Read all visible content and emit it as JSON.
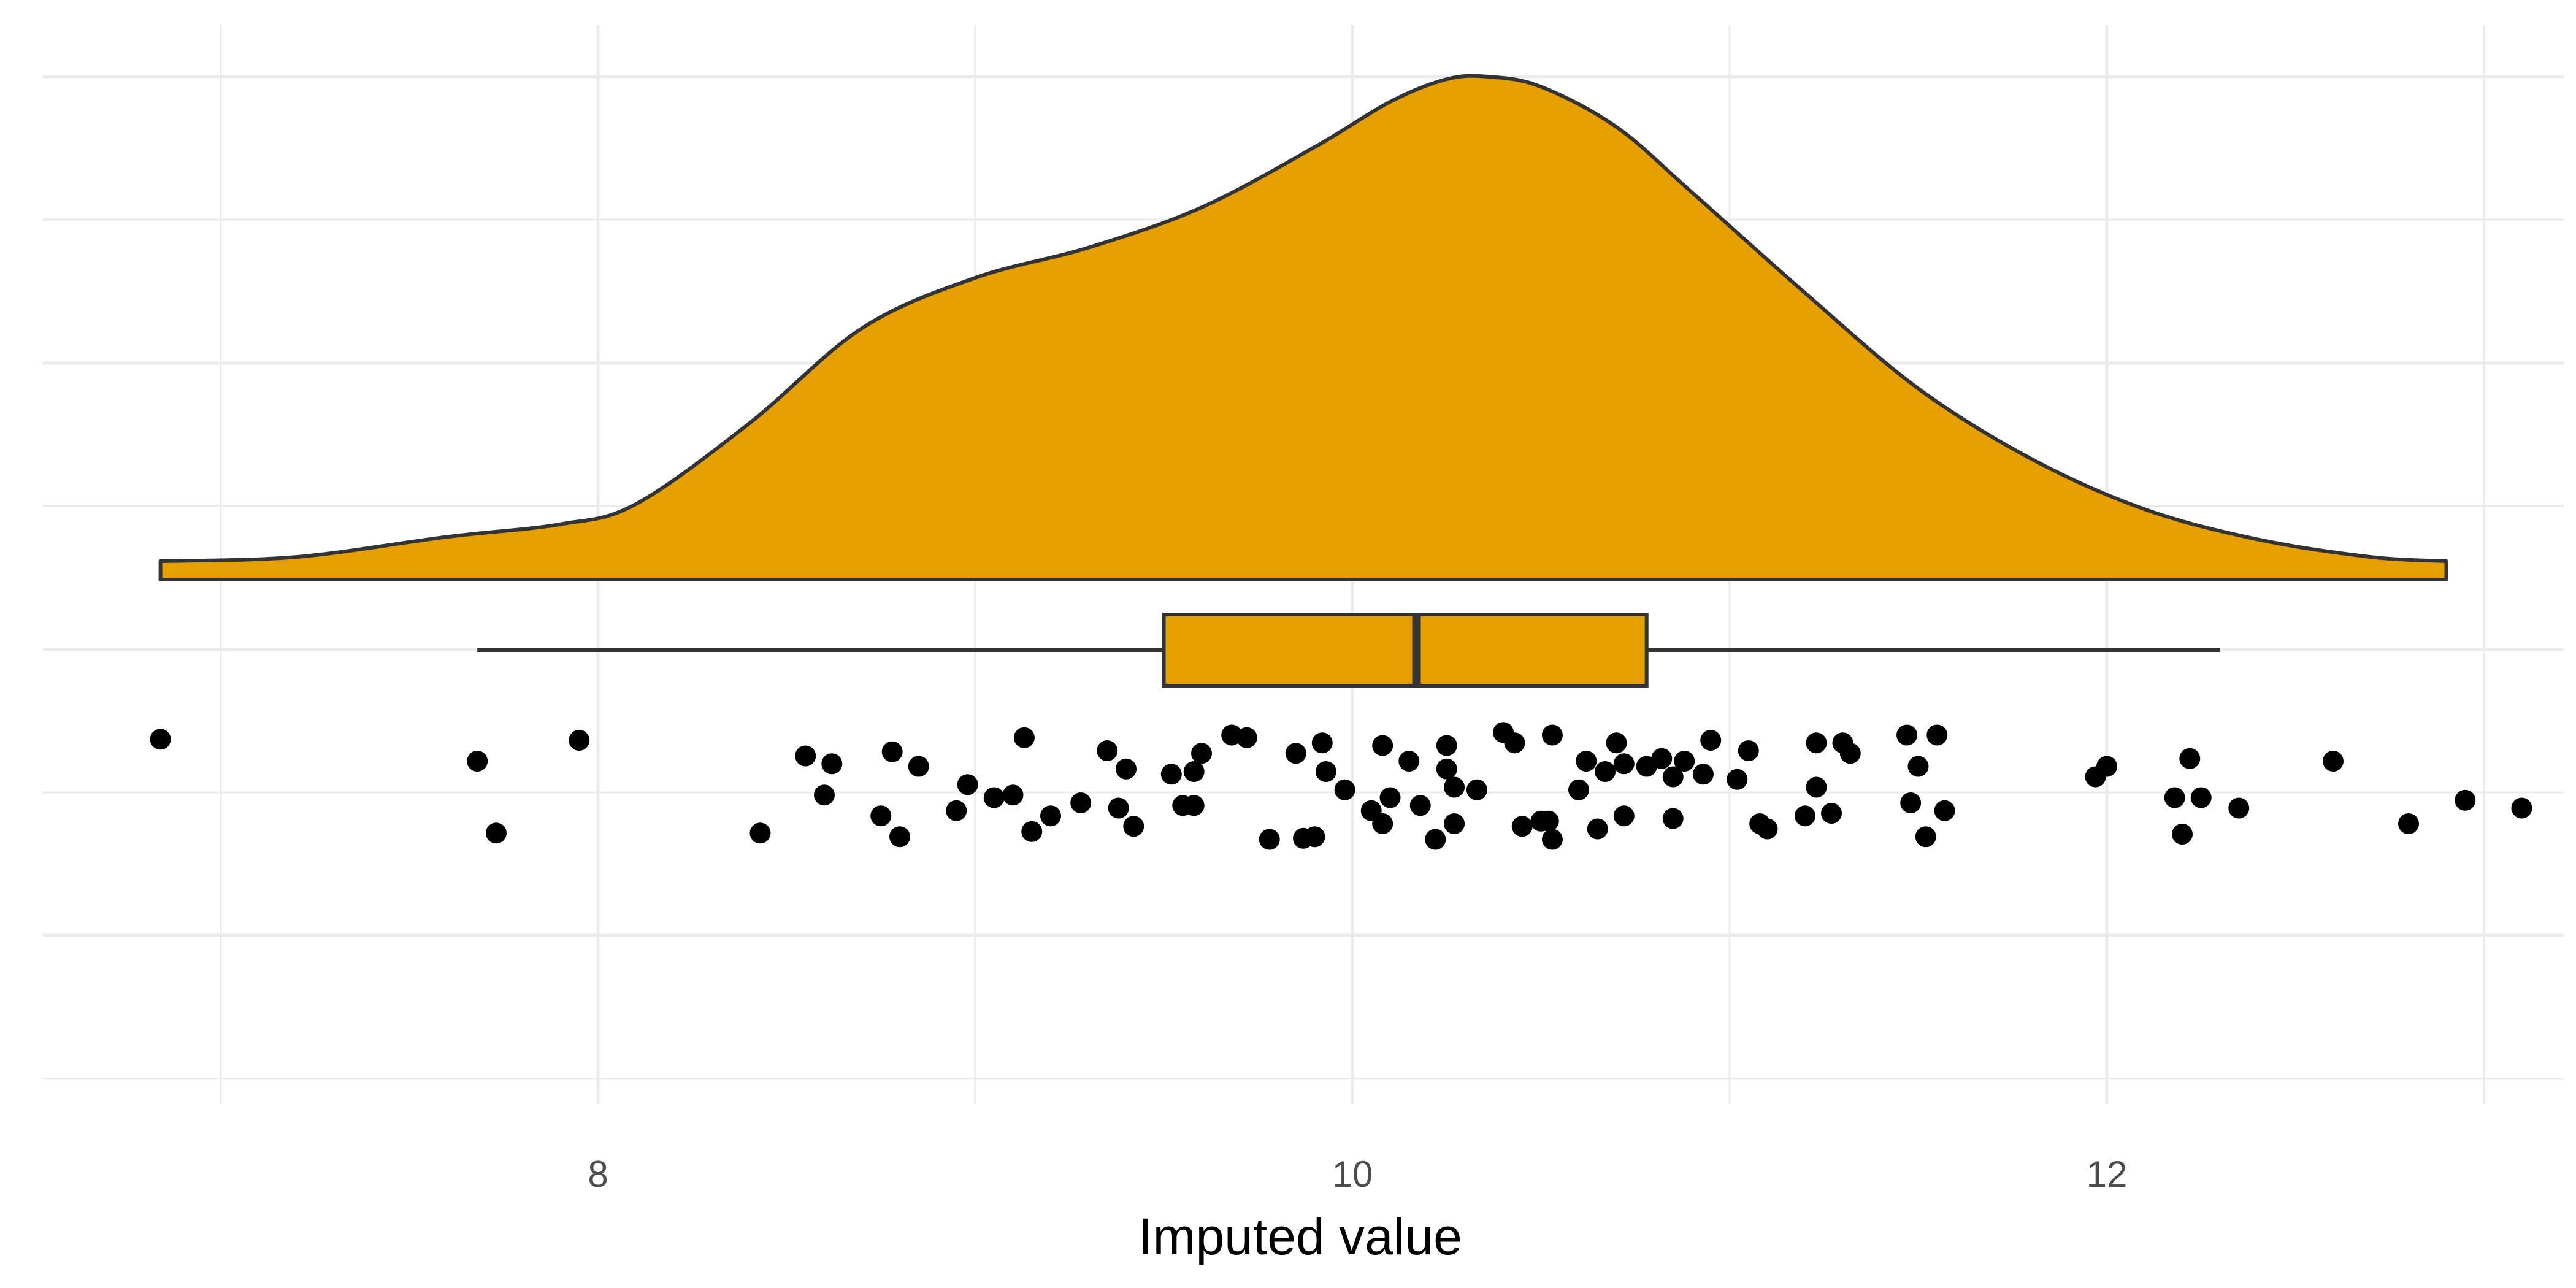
{
  "chart_data": {
    "type": "raincloud",
    "xlabel": "Imputed value",
    "ylabel": "",
    "title": "",
    "xlim": [
      6.75,
      13.25
    ],
    "x_ticks": [
      8,
      10,
      12
    ],
    "grid": "on",
    "colors": {
      "fill": "#E69F00",
      "outline": "#333333",
      "points": "#000000",
      "grid": "#EBEBEB"
    },
    "density": {
      "x": [
        6.84,
        7.2,
        7.6,
        7.9,
        8.1,
        8.4,
        8.7,
        9.0,
        9.3,
        9.6,
        9.9,
        10.1,
        10.25,
        10.36,
        10.5,
        10.7,
        10.9,
        11.2,
        11.5,
        11.8,
        12.1,
        12.4,
        12.7,
        12.9
      ],
      "density": [
        0.03,
        0.045,
        0.085,
        0.11,
        0.15,
        0.31,
        0.5,
        0.6,
        0.66,
        0.74,
        0.86,
        0.95,
        0.995,
        1.0,
        0.98,
        0.9,
        0.77,
        0.57,
        0.38,
        0.24,
        0.14,
        0.08,
        0.045,
        0.035
      ]
    },
    "boxplot": {
      "whisker_low": 7.68,
      "q1": 9.5,
      "median": 10.17,
      "q3": 10.78,
      "whisker_high": 12.3
    },
    "points": [
      {
        "x": 6.84,
        "y": 1.02
      },
      {
        "x": 7.68,
        "y": 0.6
      },
      {
        "x": 7.73,
        "y": -0.78
      },
      {
        "x": 7.95,
        "y": 1.0
      },
      {
        "x": 8.43,
        "y": -0.78
      },
      {
        "x": 8.55,
        "y": 0.7
      },
      {
        "x": 8.62,
        "y": 0.55
      },
      {
        "x": 8.6,
        "y": -0.05
      },
      {
        "x": 8.75,
        "y": -0.45
      },
      {
        "x": 8.78,
        "y": 0.78
      },
      {
        "x": 8.8,
        "y": -0.85
      },
      {
        "x": 8.85,
        "y": 0.5
      },
      {
        "x": 8.95,
        "y": -0.35
      },
      {
        "x": 8.98,
        "y": 0.15
      },
      {
        "x": 9.05,
        "y": -0.1
      },
      {
        "x": 9.1,
        "y": -0.05
      },
      {
        "x": 9.13,
        "y": 1.05
      },
      {
        "x": 9.15,
        "y": -0.75
      },
      {
        "x": 9.2,
        "y": -0.45
      },
      {
        "x": 9.28,
        "y": -0.2
      },
      {
        "x": 9.35,
        "y": 0.8
      },
      {
        "x": 9.38,
        "y": -0.3
      },
      {
        "x": 9.4,
        "y": 0.45
      },
      {
        "x": 9.42,
        "y": -0.65
      },
      {
        "x": 9.52,
        "y": 0.35
      },
      {
        "x": 9.55,
        "y": -0.25
      },
      {
        "x": 9.58,
        "y": 0.4
      },
      {
        "x": 9.58,
        "y": -0.25
      },
      {
        "x": 9.6,
        "y": 0.75
      },
      {
        "x": 9.68,
        "y": 1.1
      },
      {
        "x": 9.72,
        "y": 1.05
      },
      {
        "x": 9.78,
        "y": -0.9
      },
      {
        "x": 9.85,
        "y": 0.75
      },
      {
        "x": 9.87,
        "y": -0.88
      },
      {
        "x": 9.9,
        "y": -0.85
      },
      {
        "x": 9.92,
        "y": 0.95
      },
      {
        "x": 9.93,
        "y": 0.4
      },
      {
        "x": 9.98,
        "y": 0.05
      },
      {
        "x": 10.05,
        "y": -0.35
      },
      {
        "x": 10.08,
        "y": 0.9
      },
      {
        "x": 10.08,
        "y": -0.6
      },
      {
        "x": 10.1,
        "y": -0.1
      },
      {
        "x": 10.15,
        "y": 0.6
      },
      {
        "x": 10.18,
        "y": -0.25
      },
      {
        "x": 10.22,
        "y": -0.9
      },
      {
        "x": 10.25,
        "y": 0.9
      },
      {
        "x": 10.25,
        "y": 0.45
      },
      {
        "x": 10.27,
        "y": 0.1
      },
      {
        "x": 10.27,
        "y": -0.6
      },
      {
        "x": 10.33,
        "y": 0.05
      },
      {
        "x": 10.4,
        "y": 1.15
      },
      {
        "x": 10.43,
        "y": 0.95
      },
      {
        "x": 10.45,
        "y": -0.65
      },
      {
        "x": 10.5,
        "y": -0.55
      },
      {
        "x": 10.52,
        "y": -0.55
      },
      {
        "x": 10.53,
        "y": 1.1
      },
      {
        "x": 10.53,
        "y": -0.9
      },
      {
        "x": 10.6,
        "y": 0.05
      },
      {
        "x": 10.62,
        "y": 0.6
      },
      {
        "x": 10.65,
        "y": -0.7
      },
      {
        "x": 10.67,
        "y": 0.4
      },
      {
        "x": 10.7,
        "y": 0.95
      },
      {
        "x": 10.72,
        "y": 0.55
      },
      {
        "x": 10.72,
        "y": -0.45
      },
      {
        "x": 10.78,
        "y": 0.5
      },
      {
        "x": 10.82,
        "y": 0.65
      },
      {
        "x": 10.85,
        "y": -0.5
      },
      {
        "x": 10.85,
        "y": 0.3
      },
      {
        "x": 10.88,
        "y": 0.6
      },
      {
        "x": 10.93,
        "y": 0.35
      },
      {
        "x": 10.95,
        "y": 1.0
      },
      {
        "x": 11.02,
        "y": 0.25
      },
      {
        "x": 11.05,
        "y": 0.8
      },
      {
        "x": 11.08,
        "y": -0.6
      },
      {
        "x": 11.1,
        "y": -0.7
      },
      {
        "x": 11.2,
        "y": -0.45
      },
      {
        "x": 11.23,
        "y": 0.95
      },
      {
        "x": 11.23,
        "y": 0.1
      },
      {
        "x": 11.27,
        "y": -0.4
      },
      {
        "x": 11.3,
        "y": 0.95
      },
      {
        "x": 11.32,
        "y": 0.75
      },
      {
        "x": 11.47,
        "y": 1.1
      },
      {
        "x": 11.48,
        "y": -0.2
      },
      {
        "x": 11.5,
        "y": 0.5
      },
      {
        "x": 11.52,
        "y": -0.85
      },
      {
        "x": 11.55,
        "y": 1.1
      },
      {
        "x": 11.57,
        "y": -0.35
      },
      {
        "x": 11.97,
        "y": 0.3
      },
      {
        "x": 12.0,
        "y": 0.5
      },
      {
        "x": 12.18,
        "y": -0.1
      },
      {
        "x": 12.2,
        "y": -0.8
      },
      {
        "x": 12.22,
        "y": 0.65
      },
      {
        "x": 12.25,
        "y": -0.1
      },
      {
        "x": 12.35,
        "y": -0.3
      },
      {
        "x": 12.6,
        "y": 0.6
      },
      {
        "x": 12.8,
        "y": -0.6
      },
      {
        "x": 12.95,
        "y": -0.15
      },
      {
        "x": 13.1,
        "y": -0.3
      }
    ]
  }
}
